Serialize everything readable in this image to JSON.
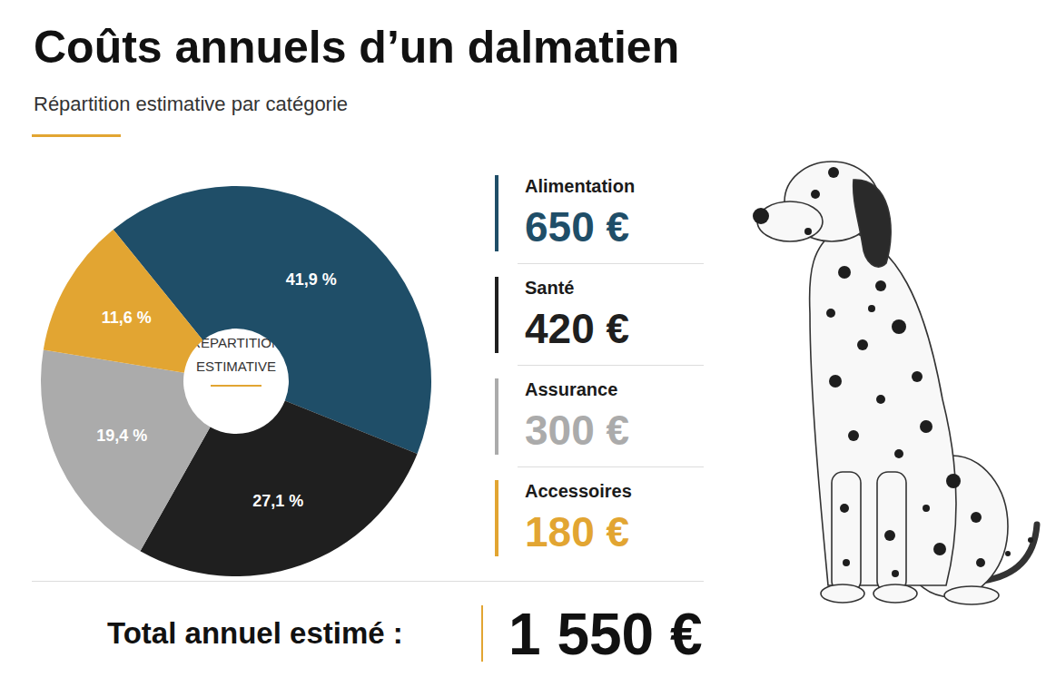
{
  "chart_data": {
    "type": "pie",
    "title": "Coûts annuels d’un dalmatien",
    "subtitle": "Répartition estimative par catégorie",
    "center_label": "RÉPARTITION ESTIMATIVE",
    "categories": [
      "Alimentation",
      "Santé",
      "Assurance",
      "Accessoires"
    ],
    "values": [
      41.9,
      27.1,
      19.4,
      11.6
    ],
    "value_labels": [
      "41,9 %",
      "27,1 %",
      "19,4 %",
      "11,6 %"
    ],
    "colors": [
      "#1f4e68",
      "#1f1f1f",
      "#ababab",
      "#e2a532"
    ],
    "data_labels": true,
    "amounts": [
      {
        "value": 650,
        "label": "650 €"
      },
      {
        "value": 420,
        "label": "420 €"
      },
      {
        "value": 300,
        "label": "300 €"
      },
      {
        "value": 180,
        "label": "180 €"
      }
    ],
    "total_text": "Total annuel estimé :",
    "total": {
      "value": 1550,
      "label": "1 550 €"
    }
  }
}
